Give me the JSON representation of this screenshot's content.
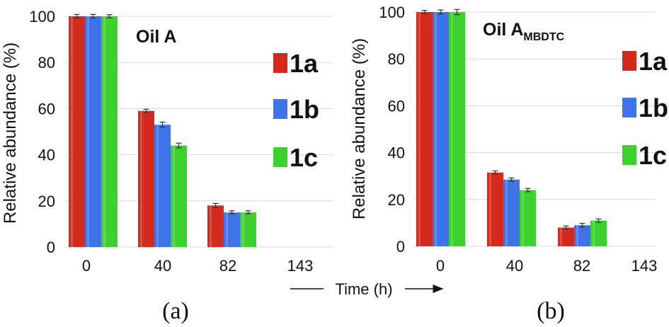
{
  "colors": {
    "1a": "#d42a1e",
    "1b": "#3e74e8",
    "1c": "#3dd12f"
  },
  "xlabel": "Time (h)",
  "chart_data": [
    {
      "type": "bar",
      "panel_label": "(a)",
      "title": "Oil A",
      "title_sub": "",
      "ylabel": "Relative abundance (%)",
      "ylim": [
        0,
        100
      ],
      "yticks": [
        "0",
        "20",
        "40",
        "60",
        "80",
        "100"
      ],
      "categories": [
        "0",
        "40",
        "82",
        "143"
      ],
      "grid": true,
      "legend_position": "right",
      "series": [
        {
          "name": "1a",
          "values": [
            100,
            59,
            18,
            0
          ],
          "errors": [
            0.5,
            0.4,
            0.6,
            0
          ]
        },
        {
          "name": "1b",
          "values": [
            100,
            53,
            15,
            0
          ],
          "errors": [
            0.5,
            0.8,
            0.4,
            0
          ]
        },
        {
          "name": "1c",
          "values": [
            100,
            44,
            15,
            0
          ],
          "errors": [
            0.4,
            0.7,
            0.4,
            0
          ]
        }
      ]
    },
    {
      "type": "bar",
      "panel_label": "(b)",
      "title": "Oil A",
      "title_sub": "MBDTC",
      "ylabel": "Relative abundance (%)",
      "ylim": [
        0,
        100
      ],
      "yticks": [
        "0",
        "20",
        "40",
        "60",
        "80",
        "100"
      ],
      "categories": [
        "0",
        "40",
        "82",
        "143"
      ],
      "grid": true,
      "legend_position": "right",
      "series": [
        {
          "name": "1a",
          "values": [
            100,
            31.5,
            8,
            0
          ],
          "errors": [
            0.4,
            0.4,
            0.4,
            0
          ]
        },
        {
          "name": "1b",
          "values": [
            100,
            28.5,
            9,
            0
          ],
          "errors": [
            0.6,
            0.4,
            0.5,
            0
          ]
        },
        {
          "name": "1c",
          "values": [
            100,
            24,
            11,
            0
          ],
          "errors": [
            0.8,
            0.4,
            0.4,
            0
          ]
        }
      ]
    }
  ]
}
